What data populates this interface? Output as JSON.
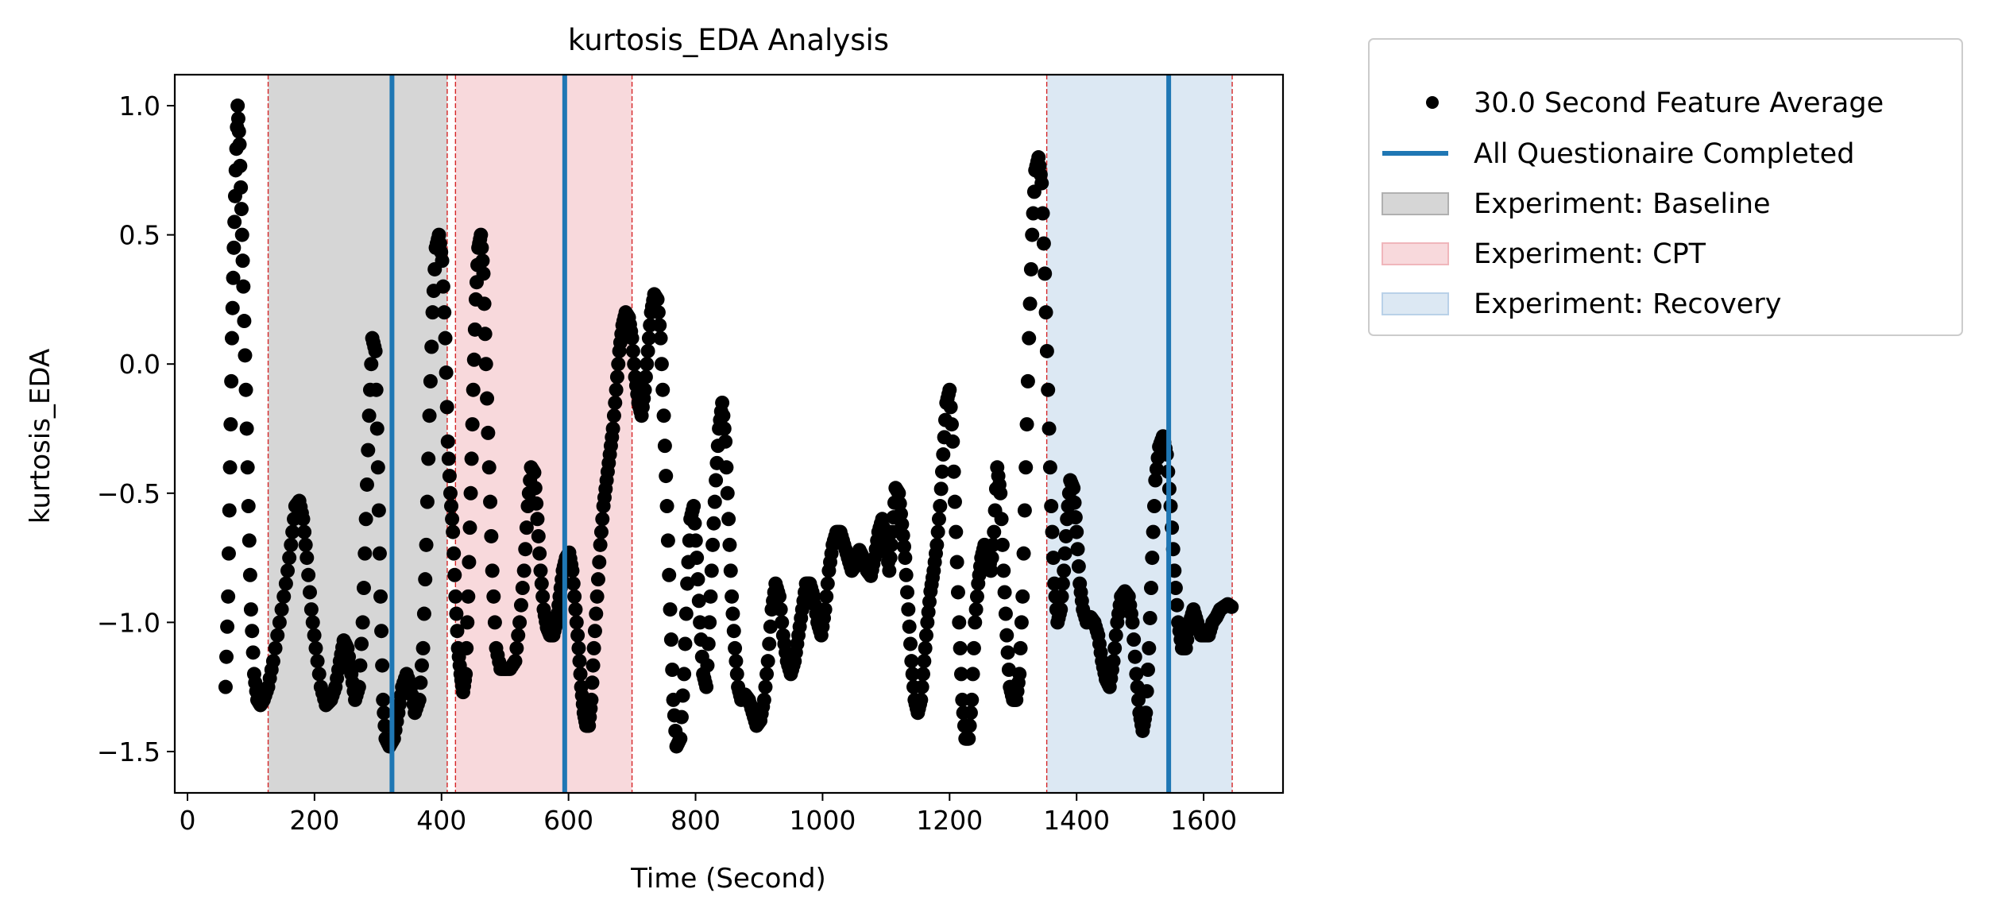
{
  "chart_data": {
    "type": "scatter",
    "title": "kurtosis_EDA Analysis",
    "xlabel": "Time (Second)",
    "ylabel": "kurtosis_EDA",
    "xlim": [
      -20,
      1725
    ],
    "ylim": [
      -1.66,
      1.12
    ],
    "xticks": [
      0,
      200,
      400,
      600,
      800,
      1000,
      1200,
      1400,
      1600
    ],
    "xtick_labels": [
      "0",
      "200",
      "400",
      "600",
      "800",
      "1000",
      "1200",
      "1400",
      "1600"
    ],
    "yticks": [
      -1.5,
      -1.0,
      -0.5,
      0.0,
      0.5,
      1.0
    ],
    "ytick_labels": [
      "−1.5",
      "−1.0",
      "−0.5",
      "0.0",
      "0.5",
      "1.0"
    ],
    "grid": false,
    "legend_position": "outside-right-top",
    "legend": [
      {
        "kind": "marker",
        "label": "30.0 Second Feature Average",
        "color": "#000000"
      },
      {
        "kind": "line",
        "label": "All Questionaire Completed",
        "color": "#1f77b4"
      },
      {
        "kind": "patch",
        "label": "Experiment: Baseline",
        "color": "#d6d6d6",
        "edge": "#b0b0b0"
      },
      {
        "kind": "patch",
        "label": "Experiment: CPT",
        "color": "#f8d9dc",
        "edge": "#f0b6bb"
      },
      {
        "kind": "patch",
        "label": "Experiment: Recovery",
        "color": "#dce8f3",
        "edge": "#b9d1e8"
      }
    ],
    "spans": [
      {
        "label": "Experiment: Baseline",
        "x0": 127,
        "x1": 409,
        "color": "#d6d6d6"
      },
      {
        "label": "Experiment: CPT",
        "x0": 422,
        "x1": 700,
        "color": "#f8d9dc"
      },
      {
        "label": "Experiment: Recovery",
        "x0": 1353,
        "x1": 1645,
        "color": "#dce8f3"
      }
    ],
    "span_edges_color": "#d62728",
    "questionnaire_lines": {
      "label": "All Questionaire Completed",
      "x": [
        322,
        594,
        1545
      ],
      "color": "#1f77b4"
    },
    "series": [
      {
        "name": "30.0 Second Feature Average",
        "color": "#000000",
        "points": [
          [
            60,
            -1.25
          ],
          [
            64,
            -0.9
          ],
          [
            67,
            -0.4
          ],
          [
            70,
            0.1
          ],
          [
            73,
            0.45
          ],
          [
            76,
            0.75
          ],
          [
            79,
            1.0
          ],
          [
            82,
            0.85
          ],
          [
            85,
            0.6
          ],
          [
            88,
            0.3
          ],
          [
            92,
            -0.1
          ],
          [
            96,
            -0.55
          ],
          [
            100,
            -0.95
          ],
          [
            105,
            -1.2
          ],
          [
            110,
            -1.3
          ],
          [
            115,
            -1.32
          ],
          [
            120,
            -1.3
          ],
          [
            127,
            -1.25
          ],
          [
            135,
            -1.15
          ],
          [
            145,
            -1.0
          ],
          [
            155,
            -0.85
          ],
          [
            163,
            -0.7
          ],
          [
            170,
            -0.55
          ],
          [
            176,
            -0.53
          ],
          [
            182,
            -0.6
          ],
          [
            188,
            -0.75
          ],
          [
            195,
            -0.95
          ],
          [
            202,
            -1.1
          ],
          [
            210,
            -1.25
          ],
          [
            218,
            -1.32
          ],
          [
            226,
            -1.3
          ],
          [
            233,
            -1.25
          ],
          [
            240,
            -1.15
          ],
          [
            246,
            -1.07
          ],
          [
            252,
            -1.1
          ],
          [
            258,
            -1.2
          ],
          [
            264,
            -1.3
          ],
          [
            270,
            -1.25
          ],
          [
            276,
            -1.0
          ],
          [
            281,
            -0.6
          ],
          [
            286,
            -0.2
          ],
          [
            291,
            0.1
          ],
          [
            296,
            0.05
          ],
          [
            300,
            -0.4
          ],
          [
            304,
            -0.9
          ],
          [
            308,
            -1.3
          ],
          [
            312,
            -1.45
          ],
          [
            318,
            -1.48
          ],
          [
            325,
            -1.45
          ],
          [
            332,
            -1.35
          ],
          [
            338,
            -1.25
          ],
          [
            345,
            -1.2
          ],
          [
            352,
            -1.25
          ],
          [
            358,
            -1.35
          ],
          [
            365,
            -1.3
          ],
          [
            371,
            -1.1
          ],
          [
            376,
            -0.7
          ],
          [
            381,
            -0.2
          ],
          [
            386,
            0.2
          ],
          [
            391,
            0.45
          ],
          [
            396,
            0.5
          ],
          [
            401,
            0.4
          ],
          [
            406,
            0.1
          ],
          [
            410,
            -0.3
          ],
          [
            414,
            -0.5
          ],
          [
            418,
            -0.65
          ],
          [
            422,
            -0.9
          ],
          [
            426,
            -1.1
          ],
          [
            430,
            -1.2
          ],
          [
            434,
            -1.27
          ],
          [
            438,
            -1.2
          ],
          [
            442,
            -0.9
          ],
          [
            446,
            -0.5
          ],
          [
            450,
            -0.1
          ],
          [
            454,
            0.25
          ],
          [
            458,
            0.45
          ],
          [
            462,
            0.5
          ],
          [
            466,
            0.35
          ],
          [
            470,
            0.0
          ],
          [
            475,
            -0.4
          ],
          [
            480,
            -0.8
          ],
          [
            486,
            -1.1
          ],
          [
            493,
            -1.18
          ],
          [
            500,
            -1.18
          ],
          [
            508,
            -1.18
          ],
          [
            516,
            -1.15
          ],
          [
            523,
            -1.0
          ],
          [
            530,
            -0.8
          ],
          [
            536,
            -0.55
          ],
          [
            541,
            -0.4
          ],
          [
            546,
            -0.42
          ],
          [
            551,
            -0.6
          ],
          [
            556,
            -0.8
          ],
          [
            561,
            -0.95
          ],
          [
            566,
            -1.02
          ],
          [
            571,
            -1.05
          ],
          [
            576,
            -1.05
          ],
          [
            581,
            -1.0
          ],
          [
            586,
            -0.9
          ],
          [
            591,
            -0.8
          ],
          [
            596,
            -0.75
          ],
          [
            601,
            -0.73
          ],
          [
            606,
            -0.8
          ],
          [
            611,
            -0.95
          ],
          [
            616,
            -1.1
          ],
          [
            620,
            -1.25
          ],
          [
            624,
            -1.35
          ],
          [
            628,
            -1.4
          ],
          [
            632,
            -1.4
          ],
          [
            636,
            -1.3
          ],
          [
            640,
            -1.1
          ],
          [
            645,
            -0.9
          ],
          [
            650,
            -0.7
          ],
          [
            655,
            -0.55
          ],
          [
            660,
            -0.45
          ],
          [
            665,
            -0.35
          ],
          [
            670,
            -0.25
          ],
          [
            675,
            -0.1
          ],
          [
            680,
            0.05
          ],
          [
            685,
            0.15
          ],
          [
            690,
            0.2
          ],
          [
            695,
            0.18
          ],
          [
            700,
            0.1
          ],
          [
            705,
            -0.05
          ],
          [
            710,
            -0.15
          ],
          [
            715,
            -0.2
          ],
          [
            720,
            -0.1
          ],
          [
            725,
            0.05
          ],
          [
            730,
            0.2
          ],
          [
            735,
            0.27
          ],
          [
            740,
            0.25
          ],
          [
            745,
            0.1
          ],
          [
            750,
            -0.2
          ],
          [
            755,
            -0.55
          ],
          [
            760,
            -0.95
          ],
          [
            765,
            -1.3
          ],
          [
            770,
            -1.48
          ],
          [
            776,
            -1.45
          ],
          [
            782,
            -1.2
          ],
          [
            787,
            -0.85
          ],
          [
            792,
            -0.6
          ],
          [
            797,
            -0.55
          ],
          [
            802,
            -0.75
          ],
          [
            807,
            -1.0
          ],
          [
            812,
            -1.2
          ],
          [
            817,
            -1.25
          ],
          [
            822,
            -1.0
          ],
          [
            827,
            -0.7
          ],
          [
            832,
            -0.45
          ],
          [
            837,
            -0.25
          ],
          [
            842,
            -0.15
          ],
          [
            847,
            -0.3
          ],
          [
            852,
            -0.6
          ],
          [
            857,
            -0.9
          ],
          [
            862,
            -1.1
          ],
          [
            867,
            -1.25
          ],
          [
            872,
            -1.3
          ],
          [
            878,
            -1.28
          ],
          [
            884,
            -1.3
          ],
          [
            890,
            -1.35
          ],
          [
            896,
            -1.4
          ],
          [
            902,
            -1.38
          ],
          [
            908,
            -1.3
          ],
          [
            914,
            -1.15
          ],
          [
            920,
            -0.95
          ],
          [
            926,
            -0.85
          ],
          [
            932,
            -0.9
          ],
          [
            938,
            -1.05
          ],
          [
            944,
            -1.15
          ],
          [
            950,
            -1.2
          ],
          [
            956,
            -1.15
          ],
          [
            962,
            -1.05
          ],
          [
            968,
            -0.95
          ],
          [
            974,
            -0.85
          ],
          [
            980,
            -0.85
          ],
          [
            986,
            -0.9
          ],
          [
            992,
            -1.0
          ],
          [
            998,
            -1.05
          ],
          [
            1004,
            -0.95
          ],
          [
            1010,
            -0.8
          ],
          [
            1016,
            -0.7
          ],
          [
            1022,
            -0.65
          ],
          [
            1028,
            -0.65
          ],
          [
            1034,
            -0.7
          ],
          [
            1040,
            -0.75
          ],
          [
            1046,
            -0.8
          ],
          [
            1052,
            -0.78
          ],
          [
            1058,
            -0.72
          ],
          [
            1064,
            -0.75
          ],
          [
            1070,
            -0.8
          ],
          [
            1076,
            -0.82
          ],
          [
            1082,
            -0.75
          ],
          [
            1088,
            -0.65
          ],
          [
            1094,
            -0.6
          ],
          [
            1100,
            -0.7
          ],
          [
            1105,
            -0.8
          ],
          [
            1110,
            -0.65
          ],
          [
            1115,
            -0.48
          ],
          [
            1120,
            -0.5
          ],
          [
            1125,
            -0.62
          ],
          [
            1130,
            -0.75
          ],
          [
            1135,
            -0.95
          ],
          [
            1140,
            -1.15
          ],
          [
            1145,
            -1.3
          ],
          [
            1150,
            -1.35
          ],
          [
            1155,
            -1.3
          ],
          [
            1160,
            -1.15
          ],
          [
            1165,
            -1.0
          ],
          [
            1170,
            -0.88
          ],
          [
            1175,
            -0.8
          ],
          [
            1180,
            -0.7
          ],
          [
            1185,
            -0.55
          ],
          [
            1190,
            -0.35
          ],
          [
            1195,
            -0.15
          ],
          [
            1200,
            -0.1
          ],
          [
            1205,
            -0.3
          ],
          [
            1210,
            -0.65
          ],
          [
            1215,
            -1.0
          ],
          [
            1220,
            -1.3
          ],
          [
            1225,
            -1.45
          ],
          [
            1230,
            -1.45
          ],
          [
            1235,
            -1.3
          ],
          [
            1240,
            -1.0
          ],
          [
            1245,
            -0.85
          ],
          [
            1250,
            -0.75
          ],
          [
            1255,
            -0.7
          ],
          [
            1260,
            -0.72
          ],
          [
            1265,
            -0.8
          ],
          [
            1270,
            -0.65
          ],
          [
            1275,
            -0.4
          ],
          [
            1280,
            -0.5
          ],
          [
            1285,
            -0.8
          ],
          [
            1290,
            -1.05
          ],
          [
            1295,
            -1.25
          ],
          [
            1300,
            -1.3
          ],
          [
            1305,
            -1.3
          ],
          [
            1310,
            -1.2
          ],
          [
            1315,
            -0.9
          ],
          [
            1320,
            -0.4
          ],
          [
            1325,
            0.1
          ],
          [
            1330,
            0.5
          ],
          [
            1335,
            0.75
          ],
          [
            1340,
            0.8
          ],
          [
            1345,
            0.7
          ],
          [
            1350,
            0.35
          ],
          [
            1355,
            -0.1
          ],
          [
            1360,
            -0.55
          ],
          [
            1365,
            -0.85
          ],
          [
            1370,
            -1.0
          ],
          [
            1375,
            -0.95
          ],
          [
            1380,
            -0.8
          ],
          [
            1385,
            -0.6
          ],
          [
            1390,
            -0.45
          ],
          [
            1395,
            -0.48
          ],
          [
            1400,
            -0.65
          ],
          [
            1405,
            -0.85
          ],
          [
            1410,
            -0.95
          ],
          [
            1416,
            -1.0
          ],
          [
            1422,
            -0.98
          ],
          [
            1428,
            -1.0
          ],
          [
            1434,
            -1.05
          ],
          [
            1440,
            -1.15
          ],
          [
            1446,
            -1.22
          ],
          [
            1452,
            -1.25
          ],
          [
            1458,
            -1.15
          ],
          [
            1464,
            -1.0
          ],
          [
            1470,
            -0.9
          ],
          [
            1476,
            -0.88
          ],
          [
            1482,
            -0.9
          ],
          [
            1488,
            -1.0
          ],
          [
            1494,
            -1.2
          ],
          [
            1499,
            -1.35
          ],
          [
            1504,
            -1.42
          ],
          [
            1509,
            -1.35
          ],
          [
            1514,
            -1.1
          ],
          [
            1519,
            -0.75
          ],
          [
            1524,
            -0.45
          ],
          [
            1530,
            -0.32
          ],
          [
            1536,
            -0.28
          ],
          [
            1542,
            -0.35
          ],
          [
            1548,
            -0.55
          ],
          [
            1554,
            -0.8
          ],
          [
            1560,
            -1.0
          ],
          [
            1566,
            -1.1
          ],
          [
            1572,
            -1.1
          ],
          [
            1578,
            -1.0
          ],
          [
            1584,
            -0.95
          ],
          [
            1590,
            -1.0
          ],
          [
            1596,
            -1.05
          ],
          [
            1602,
            -1.05
          ],
          [
            1608,
            -1.05
          ],
          [
            1614,
            -1.0
          ],
          [
            1620,
            -0.98
          ],
          [
            1626,
            -0.95
          ],
          [
            1632,
            -0.94
          ],
          [
            1638,
            -0.93
          ],
          [
            1644,
            -0.94
          ]
        ]
      }
    ]
  }
}
